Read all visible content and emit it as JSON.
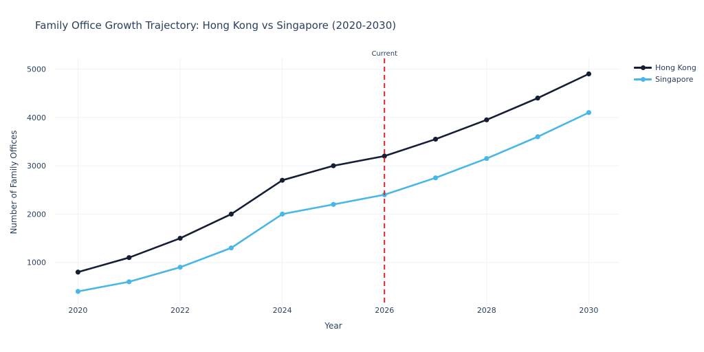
{
  "chart_data": {
    "type": "line",
    "title": "Family Office Growth Trajectory: Hong Kong vs Singapore (2020-2030)",
    "xlabel": "Year",
    "ylabel": "Number of Family Offices",
    "x": [
      2020,
      2021,
      2022,
      2023,
      2024,
      2025,
      2026,
      2027,
      2028,
      2029,
      2030
    ],
    "x_ticks": [
      "2020",
      "2022",
      "2024",
      "2026",
      "2028",
      "2030"
    ],
    "y_ticks": [
      "1000",
      "2000",
      "3000",
      "4000",
      "5000"
    ],
    "xlim": [
      2019.55,
      2030.6
    ],
    "ylim": [
      100,
      5220
    ],
    "grid": true,
    "legend_position": "top-right",
    "series": [
      {
        "name": "Hong Kong",
        "color": "#141e34",
        "values": [
          800,
          1100,
          1500,
          2000,
          2700,
          3000,
          3200,
          3550,
          3950,
          4400,
          4900
        ]
      },
      {
        "name": "Singapore",
        "color": "#48b6e6",
        "values": [
          400,
          600,
          900,
          1300,
          2000,
          2200,
          2400,
          2750,
          3150,
          3600,
          4100
        ]
      }
    ],
    "annotations": [
      {
        "type": "vline",
        "x": 2026,
        "label": "Current",
        "color": "#d62728"
      }
    ]
  }
}
